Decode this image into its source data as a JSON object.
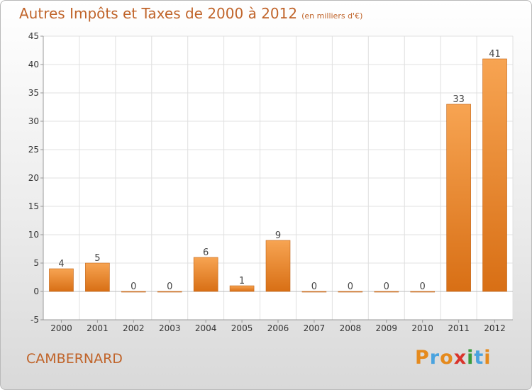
{
  "page": {
    "title": "Autres Impôts et Taxes de 2000 à 2012",
    "subtitle": "(en milliers d'€)",
    "town": "CAMBERNARD"
  },
  "logo": {
    "letters": [
      "P",
      "r",
      "o",
      "x",
      "i",
      "t",
      "i"
    ],
    "colors": [
      "#e58a1d",
      "#4aa3df",
      "#e58a1d",
      "#d9342b",
      "#3a9b3c",
      "#4aa3df",
      "#e58a1d"
    ]
  },
  "colors": {
    "bar_top": "#f7a452",
    "bar_bottom": "#d86f15",
    "accent_text": "#c0642a",
    "grid": "#e0e0e0"
  },
  "chart_data": {
    "type": "bar",
    "categories": [
      "2000",
      "2001",
      "2002",
      "2003",
      "2004",
      "2005",
      "2006",
      "2007",
      "2008",
      "2009",
      "2010",
      "2011",
      "2012"
    ],
    "values": [
      4,
      5,
      0,
      0,
      6,
      1,
      9,
      0,
      0,
      0,
      0,
      33,
      41
    ],
    "data_labels": [
      "4",
      "5",
      "0",
      "0",
      "6",
      "1",
      "9",
      "0",
      "0",
      "0",
      "0",
      "33",
      "41"
    ],
    "ylim": [
      -5,
      45
    ],
    "yticks": [
      -5,
      0,
      5,
      10,
      15,
      20,
      25,
      30,
      35,
      40,
      45
    ],
    "ytick_labels": [
      "-5",
      "0",
      "5",
      "10",
      "15",
      "20",
      "25",
      "30",
      "35",
      "40",
      "45"
    ],
    "title": "Autres Impôts et Taxes de 2000 à 2012",
    "xlabel": "",
    "ylabel": "",
    "grid": true
  }
}
